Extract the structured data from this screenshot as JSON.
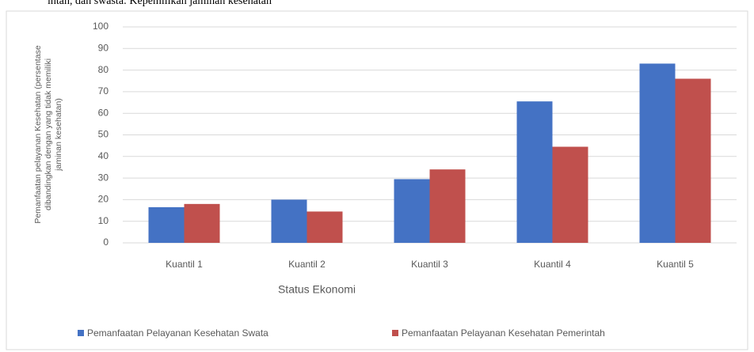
{
  "chart_data": {
    "type": "bar",
    "title": "intah, dan swasta: Kepemilikan jaminan kesehatan",
    "ylabel": [
      "Pemanfaatan pelayanan Kesehatan (persentase",
      "dibandingkan dengan yang tidak memiliki",
      "jaminan kesehatan)"
    ],
    "xlabel": "Status Ekonomi",
    "categories": [
      "Kuantil 1",
      "Kuantil 2",
      "Kuantil 3",
      "Kuantil 4",
      "Kuantil 5"
    ],
    "series": [
      {
        "name": "Pemanfaatan Pelayanan Kesehatan Swata",
        "color": "#4472c4",
        "values": [
          16.5,
          20,
          29.5,
          65.5,
          83
        ]
      },
      {
        "name": "Pemanfaatan Pelayanan Kesehatan Pemerintah",
        "color": "#c0504d",
        "values": [
          18,
          14.5,
          34,
          44.5,
          76
        ]
      }
    ],
    "ylim": [
      0,
      100
    ],
    "yticks": [
      0,
      10,
      20,
      30,
      40,
      50,
      60,
      70,
      80,
      90,
      100
    ],
    "grid": true,
    "legend": "bottom"
  }
}
